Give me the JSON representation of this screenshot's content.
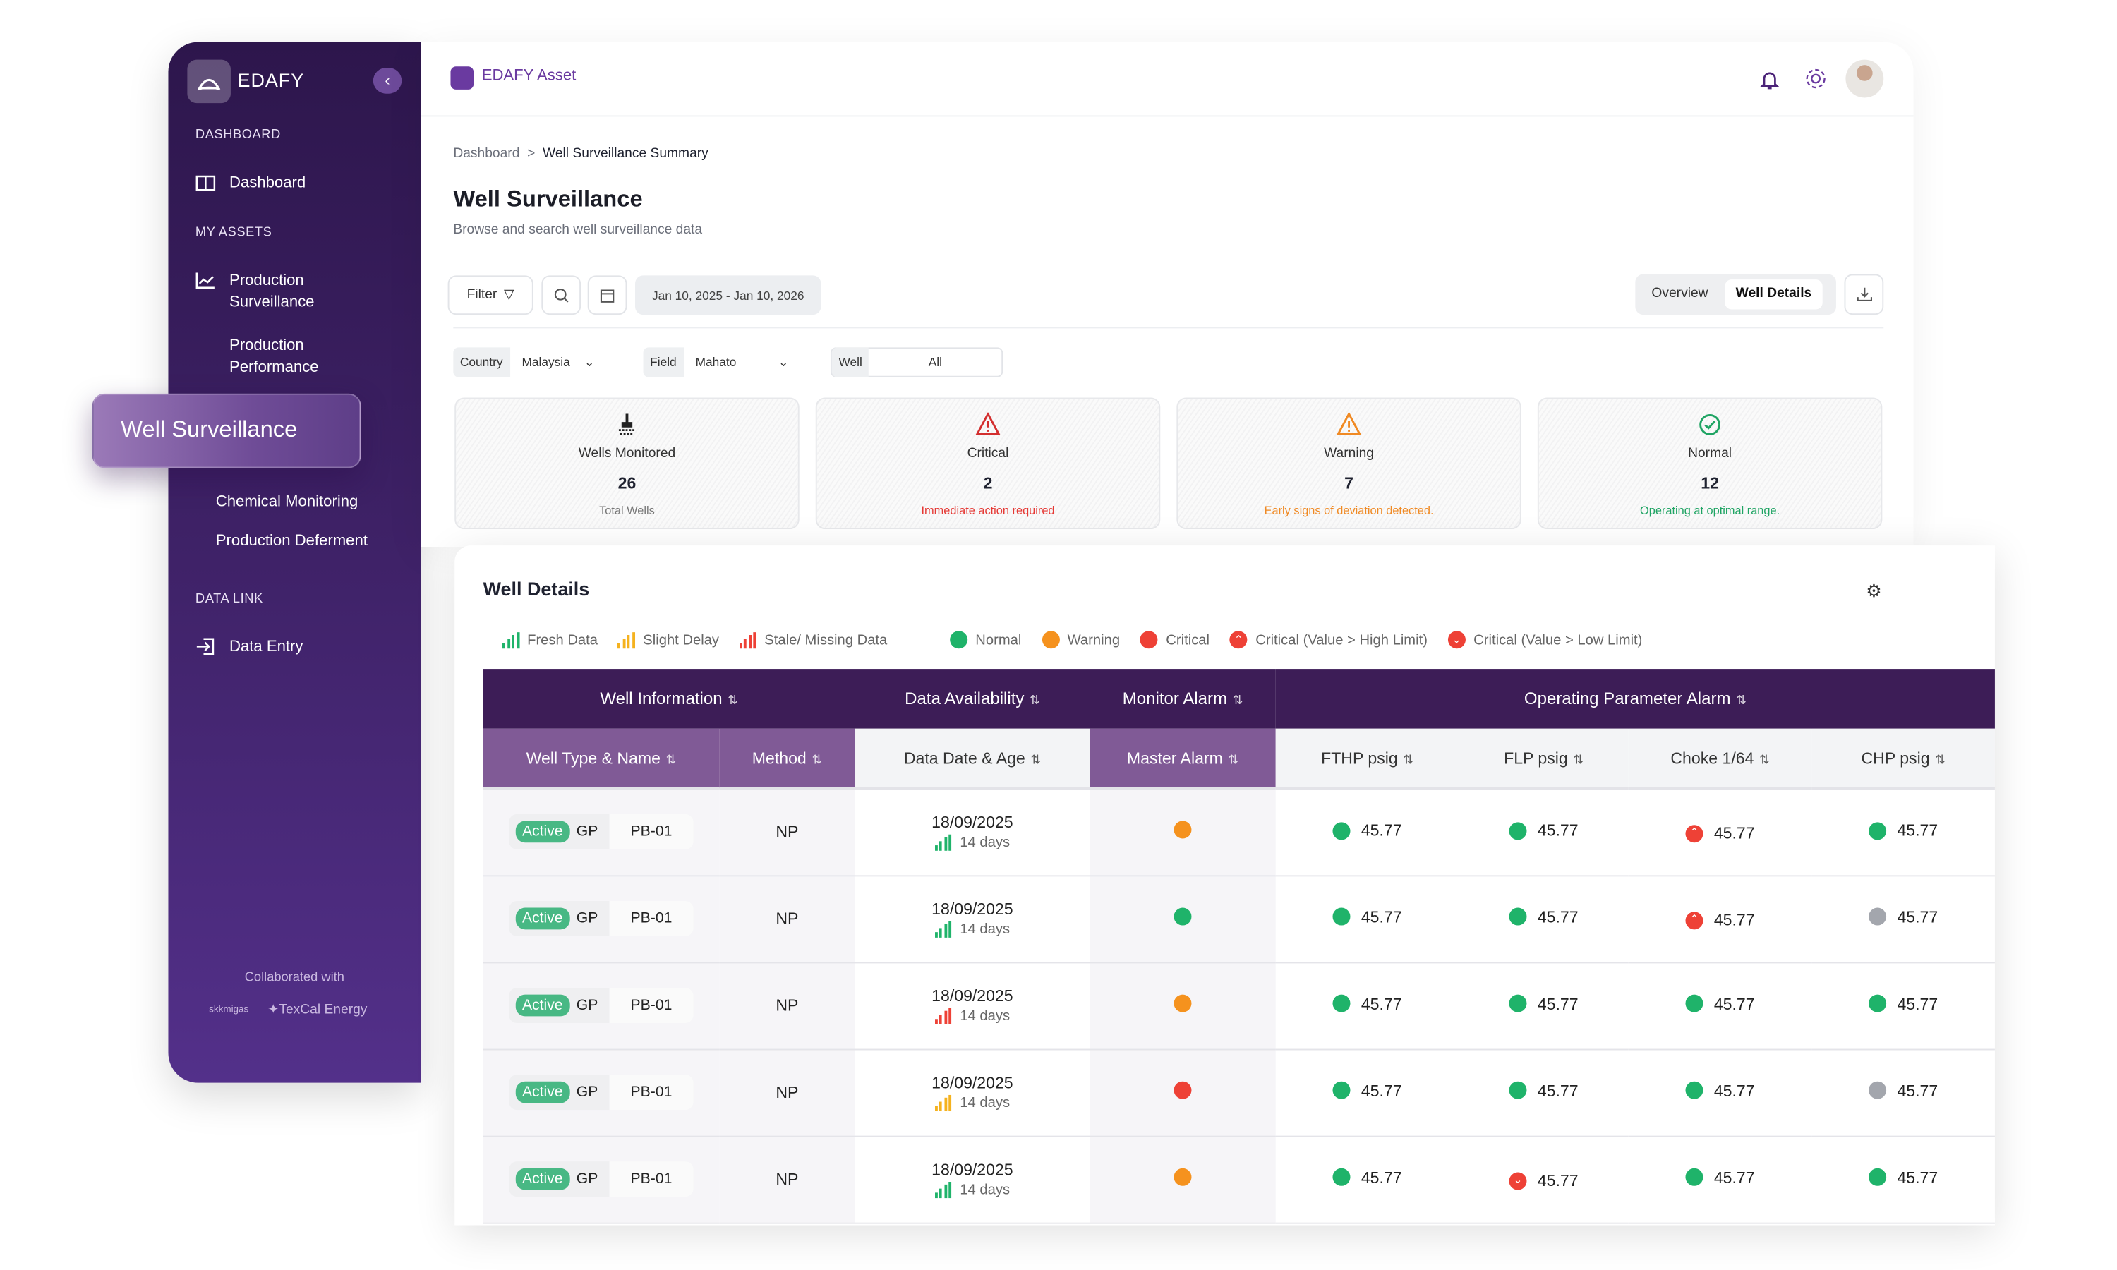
{
  "sidebar": {
    "brand": "EDAFY",
    "sections": {
      "dashboard": "DASHBOARD",
      "assets": "MY ASSETS",
      "datalink": "DATA LINK"
    },
    "items": {
      "dashboard": "Dashboard",
      "prod_surv": "Production Surveillance",
      "prod_perf": "Production Performance",
      "well_surv": "Well Surveillance",
      "chem": "Chemical Monitoring",
      "deferment": "Production Deferment",
      "data_entry": "Data Entry"
    },
    "collab": "Collaborated with",
    "partners": [
      "skkmigas",
      "TexCal Energy"
    ]
  },
  "header": {
    "app_title": "EDAFY Asset"
  },
  "breadcrumb": {
    "root": "Dashboard",
    "sep": ">",
    "current": "Well Surveillance Summary"
  },
  "page": {
    "title": "Well Surveillance",
    "subtitle": "Browse and search well surveillance data"
  },
  "toolbar": {
    "filter": "Filter",
    "date_range": "Jan 10, 2025  -  Jan 10, 2026",
    "views": [
      "Overview",
      "Well Details"
    ],
    "active_view": "Well Details"
  },
  "filters": {
    "country_label": "Country",
    "country": "Malaysia",
    "field_label": "Field",
    "field": "Mahato",
    "well_label": "Well",
    "well": "All"
  },
  "cards": [
    {
      "label": "Wells Monitored",
      "value": "26",
      "note": "Total Wells",
      "color": "#777777"
    },
    {
      "label": "Critical",
      "value": "2",
      "note": "Immediate action required",
      "color": "#e53935"
    },
    {
      "label": "Warning",
      "value": "7",
      "note": "Early signs of deviation detected.",
      "color": "#f08a24"
    },
    {
      "label": "Normal",
      "value": "12",
      "note": "Operating at optimal range.",
      "color": "#1fa463"
    }
  ],
  "details": {
    "title": "Well Details",
    "legend": {
      "fresh": "Fresh Data",
      "slight": "Slight Delay",
      "stale": "Stale/ Missing Data",
      "normal": "Normal",
      "warning": "Warning",
      "critical": "Critical",
      "high": "Critical (Value > High Limit)",
      "low": "Critical (Value > Low Limit)"
    },
    "groups": [
      "Well Information",
      "Data Availability",
      "Monitor Alarm",
      "Operating Parameter Alarm"
    ],
    "columns": [
      "Well Type & Name",
      "Method",
      "Data Date & Age",
      "Master Alarm",
      "FTHP psig",
      "FLP psig",
      "Choke 1/64",
      "CHP psig"
    ],
    "rows": [
      {
        "status": "Active",
        "type": "GP",
        "name": "PB-01",
        "method": "NP",
        "date": "18/09/2025",
        "age": "14 days",
        "freshness": "fresh",
        "master": "warning",
        "params": [
          {
            "v": "45.77",
            "s": "normal"
          },
          {
            "v": "45.77",
            "s": "normal"
          },
          {
            "v": "45.77",
            "s": "high"
          },
          {
            "v": "45.77",
            "s": "normal"
          }
        ]
      },
      {
        "status": "Active",
        "type": "GP",
        "name": "PB-01",
        "method": "NP",
        "date": "18/09/2025",
        "age": "14 days",
        "freshness": "fresh",
        "master": "normal",
        "params": [
          {
            "v": "45.77",
            "s": "normal"
          },
          {
            "v": "45.77",
            "s": "normal"
          },
          {
            "v": "45.77",
            "s": "high"
          },
          {
            "v": "45.77",
            "s": "none"
          }
        ]
      },
      {
        "status": "Active",
        "type": "GP",
        "name": "PB-01",
        "method": "NP",
        "date": "18/09/2025",
        "age": "14 days",
        "freshness": "stale",
        "master": "warning",
        "params": [
          {
            "v": "45.77",
            "s": "normal"
          },
          {
            "v": "45.77",
            "s": "normal"
          },
          {
            "v": "45.77",
            "s": "normal"
          },
          {
            "v": "45.77",
            "s": "normal"
          }
        ]
      },
      {
        "status": "Active",
        "type": "GP",
        "name": "PB-01",
        "method": "NP",
        "date": "18/09/2025",
        "age": "14 days",
        "freshness": "slight",
        "master": "critical",
        "params": [
          {
            "v": "45.77",
            "s": "normal"
          },
          {
            "v": "45.77",
            "s": "normal"
          },
          {
            "v": "45.77",
            "s": "normal"
          },
          {
            "v": "45.77",
            "s": "none"
          }
        ]
      },
      {
        "status": "Active",
        "type": "GP",
        "name": "PB-01",
        "method": "NP",
        "date": "18/09/2025",
        "age": "14 days",
        "freshness": "fresh",
        "master": "warning",
        "params": [
          {
            "v": "45.77",
            "s": "normal"
          },
          {
            "v": "45.77",
            "s": "low"
          },
          {
            "v": "45.77",
            "s": "normal"
          },
          {
            "v": "45.77",
            "s": "normal"
          }
        ]
      }
    ]
  },
  "colors": {
    "normal": "#1fb36a",
    "warning": "#f5921e",
    "critical": "#ee4136",
    "none": "#a3a6ad",
    "fresh": "#1fb36a",
    "slight": "#f5b21e",
    "stale": "#ee4136",
    "primary": "#3d1d57"
  }
}
